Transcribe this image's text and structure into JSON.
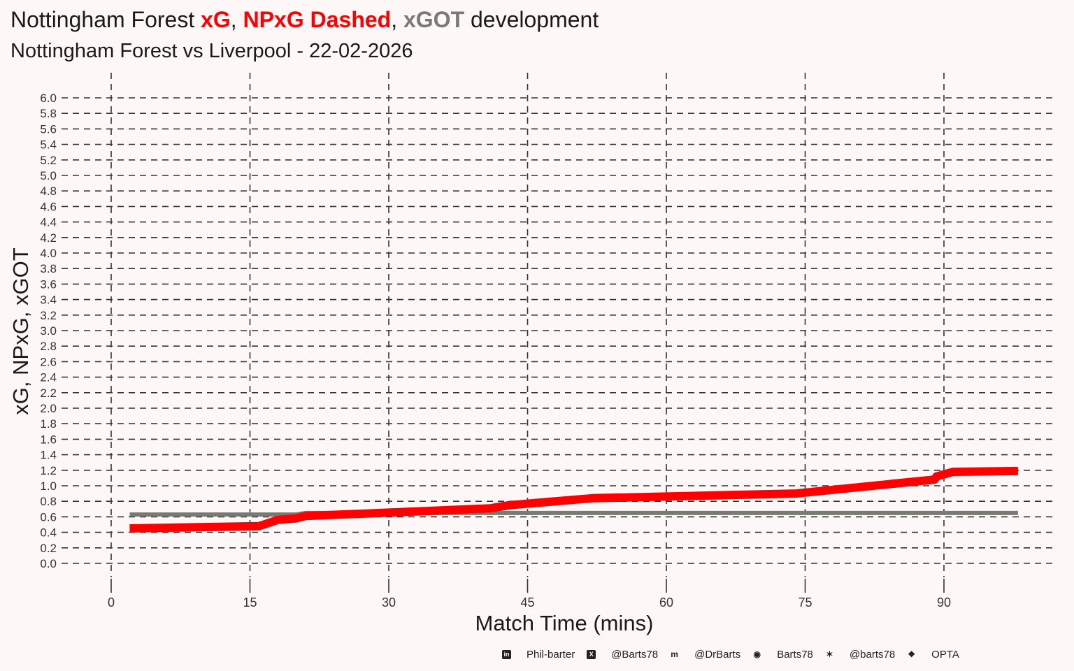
{
  "title": {
    "prefix": "Nottingham Forest ",
    "xg": "xG",
    "sep1": ", ",
    "npxg": "NPxG Dashed",
    "sep2": ", ",
    "xgot": "xGOT",
    "suffix": " development"
  },
  "subtitle": "Nottingham Forest vs Liverpool - 22-02-2026",
  "footer": {
    "items": [
      {
        "icon": "linkedin-icon",
        "text": "Phil-barter"
      },
      {
        "icon": "x-twitter-icon",
        "text": "@Barts78"
      },
      {
        "icon": "mastodon-icon",
        "text": "@DrBarts"
      },
      {
        "icon": "github-icon",
        "text": "Barts78"
      },
      {
        "icon": "bluesky-icon",
        "text": "@barts78"
      },
      {
        "icon": "dropbox-icon",
        "text": "OPTA"
      }
    ]
  },
  "chart_data": {
    "type": "line",
    "xlabel": "Match Time (mins)",
    "ylabel": "xG, NPxG, xGOT",
    "xlim": [
      -4,
      101
    ],
    "ylim": [
      0,
      6
    ],
    "xticks": [
      0,
      15,
      30,
      45,
      60,
      75,
      90
    ],
    "yticks": [
      0.0,
      0.2,
      0.4,
      0.6,
      0.8,
      1.0,
      1.2,
      1.4,
      1.6,
      1.8,
      2.0,
      2.2,
      2.4,
      2.6,
      2.8,
      3.0,
      3.2,
      3.4,
      3.6,
      3.8,
      4.0,
      4.2,
      4.4,
      4.6,
      4.8,
      5.0,
      5.2,
      5.4,
      5.6,
      5.8,
      6.0
    ],
    "grid": true,
    "series": [
      {
        "name": "xGOT",
        "color": "#7a7a75",
        "x": [
          2,
          20,
          21,
          98
        ],
        "y": [
          0.63,
          0.63,
          0.65,
          0.65
        ]
      },
      {
        "name": "xG",
        "color": "#ff0000",
        "x": [
          2,
          16,
          18,
          20,
          21,
          41,
          43,
          52,
          74,
          89,
          89.2,
          91,
          98
        ],
        "y": [
          0.45,
          0.48,
          0.56,
          0.58,
          0.61,
          0.71,
          0.75,
          0.84,
          0.9,
          1.08,
          1.12,
          1.18,
          1.19
        ]
      },
      {
        "name": "NPxG",
        "color": "#ff0000",
        "dashed": true,
        "x": [
          2,
          16,
          18,
          20,
          21,
          41,
          43,
          52,
          74,
          89,
          89.2,
          91,
          98
        ],
        "y": [
          0.45,
          0.48,
          0.56,
          0.58,
          0.61,
          0.71,
          0.75,
          0.84,
          0.9,
          1.08,
          1.12,
          1.18,
          1.19
        ]
      }
    ]
  }
}
